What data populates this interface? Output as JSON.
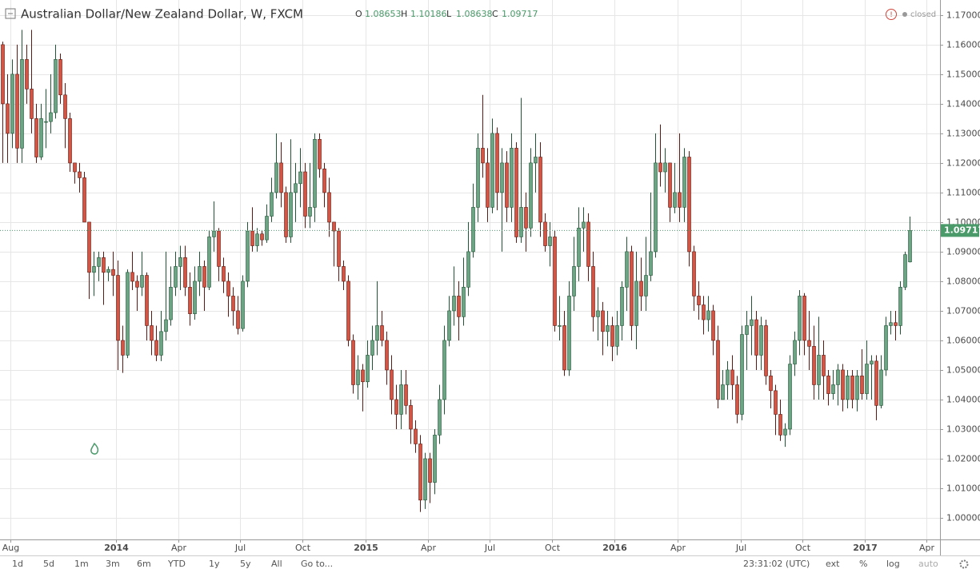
{
  "header": {
    "title": "Australian Dollar/New Zealand Dollar, W, FXCM",
    "ohlc_labels": [
      "O",
      "H",
      "L",
      "C"
    ],
    "status": "closed"
  },
  "toolbar": {
    "ranges": [
      "1d",
      "5d",
      "1m",
      "3m",
      "6m",
      "YTD",
      "1y",
      "5y",
      "All"
    ],
    "goto": "Go to...",
    "time": "23:31:02 (UTC)",
    "options": [
      "ext",
      "%",
      "log",
      "auto"
    ]
  },
  "chart_data": {
    "type": "candlestick",
    "up_color": "#6ba583",
    "down_color": "#d75442",
    "up_border": "#225437",
    "down_border": "#5b1a13",
    "grid": true,
    "xlim": [
      -0.5,
      195.3
    ],
    "xticks": [
      {
        "value": 1.7,
        "label": "Aug"
      },
      {
        "value": 23.7,
        "label": "2014"
      },
      {
        "value": 36.7,
        "label": "Apr"
      },
      {
        "value": 49.5,
        "label": "Jul"
      },
      {
        "value": 62.5,
        "label": "Oct"
      },
      {
        "value": 75.7,
        "label": "2015"
      },
      {
        "value": 88.7,
        "label": "Apr"
      },
      {
        "value": 101.5,
        "label": "Jul"
      },
      {
        "value": 114.5,
        "label": "Oct"
      },
      {
        "value": 127.5,
        "label": "2016"
      },
      {
        "value": 140.7,
        "label": "Apr"
      },
      {
        "value": 153.8,
        "label": "Jul"
      },
      {
        "value": 166.7,
        "label": "Oct"
      },
      {
        "value": 179.7,
        "label": "2017"
      },
      {
        "value": 192.5,
        "label": "Apr"
      }
    ],
    "ylim": [
      0.9927,
      1.1751
    ],
    "yticks": [
      {
        "value": 1.0,
        "label": "1.00000"
      },
      {
        "value": 1.01,
        "label": "1.01000"
      },
      {
        "value": 1.02,
        "label": "1.02000"
      },
      {
        "value": 1.03,
        "label": "1.03000"
      },
      {
        "value": 1.04,
        "label": "1.04000"
      },
      {
        "value": 1.05,
        "label": "1.05000"
      },
      {
        "value": 1.06,
        "label": "1.06000"
      },
      {
        "value": 1.07,
        "label": "1.07000"
      },
      {
        "value": 1.08,
        "label": "1.08000"
      },
      {
        "value": 1.09,
        "label": "1.09000"
      },
      {
        "value": 1.1,
        "label": "1.10000"
      },
      {
        "value": 1.11,
        "label": "1.11000"
      },
      {
        "value": 1.12,
        "label": "1.12000"
      },
      {
        "value": 1.13,
        "label": "1.13000"
      },
      {
        "value": 1.14,
        "label": "1.14000"
      },
      {
        "value": 1.15,
        "label": "1.15000"
      },
      {
        "value": 1.16,
        "label": "1.16000"
      },
      {
        "value": 1.17,
        "label": "1.17000"
      }
    ],
    "open": [
      1.16,
      1.14,
      1.13,
      1.15,
      1.125,
      1.155,
      1.145,
      1.135,
      1.122,
      1.134,
      1.134,
      1.137,
      1.155,
      1.143,
      1.135,
      1.12,
      1.117,
      1.115,
      1.1,
      1.083,
      1.085,
      1.088,
      1.083,
      1.084,
      1.082,
      1.06,
      1.055,
      1.083,
      1.08,
      1.078,
      1.082,
      1.065,
      1.06,
      1.055,
      1.063,
      1.067,
      1.078,
      1.085,
      1.088,
      1.078,
      1.069,
      1.08,
      1.085,
      1.078,
      1.095,
      1.097,
      1.085,
      1.08,
      1.075,
      1.07,
      1.064,
      1.08,
      1.097,
      1.092,
      1.096,
      1.094,
      1.102,
      1.11,
      1.12,
      1.11,
      1.095,
      1.11,
      1.113,
      1.117,
      1.102,
      1.105,
      1.128,
      1.118,
      1.11,
      1.1,
      1.097,
      1.085,
      1.08,
      1.06,
      1.045,
      1.05,
      1.046,
      1.055,
      1.06,
      1.065,
      1.06,
      1.05,
      1.04,
      1.035,
      1.045,
      1.038,
      1.03,
      1.025,
      1.006,
      1.02,
      1.012,
      1.028,
      1.04,
      1.06,
      1.07,
      1.075,
      1.068,
      1.078,
      1.09,
      1.105,
      1.125,
      1.12,
      1.105,
      1.13,
      1.11,
      1.12,
      1.105,
      1.125,
      1.095,
      1.105,
      1.098,
      1.12,
      1.122,
      1.1,
      1.092,
      1.095,
      1.065,
      1.065,
      1.05,
      1.075,
      1.085,
      1.098,
      1.1,
      1.085,
      1.068,
      1.07,
      1.063,
      1.065,
      1.058,
      1.065,
      1.078,
      1.09,
      1.065,
      1.08,
      1.075,
      1.082,
      1.09,
      1.12,
      1.117,
      1.12,
      1.105,
      1.11,
      1.105,
      1.122,
      1.09,
      1.075,
      1.072,
      1.067,
      1.07,
      1.06,
      1.04,
      1.045,
      1.05,
      1.045,
      1.035,
      1.062,
      1.065,
      1.067,
      1.055,
      1.065,
      1.048,
      1.043,
      1.035,
      1.028,
      1.03,
      1.052,
      1.06,
      1.075,
      1.06,
      1.058,
      1.045,
      1.055,
      1.048,
      1.042,
      1.045,
      1.05,
      1.04,
      1.048,
      1.04,
      1.048,
      1.042,
      1.052,
      1.053,
      1.038,
      1.05,
      1.065,
      1.066,
      1.065,
      1.078,
      1.08653
    ],
    "high": [
      1.161,
      1.15,
      1.155,
      1.16,
      1.165,
      1.16,
      1.165,
      1.14,
      1.14,
      1.145,
      1.15,
      1.16,
      1.157,
      1.147,
      1.137,
      1.12,
      1.12,
      1.117,
      1.1,
      1.09,
      1.09,
      1.09,
      1.085,
      1.09,
      1.087,
      1.065,
      1.084,
      1.09,
      1.082,
      1.09,
      1.083,
      1.07,
      1.065,
      1.07,
      1.09,
      1.085,
      1.09,
      1.092,
      1.092,
      1.083,
      1.085,
      1.09,
      1.087,
      1.097,
      1.107,
      1.098,
      1.088,
      1.083,
      1.078,
      1.075,
      1.082,
      1.1,
      1.105,
      1.098,
      1.097,
      1.106,
      1.115,
      1.13,
      1.127,
      1.112,
      1.128,
      1.12,
      1.125,
      1.12,
      1.12,
      1.13,
      1.13,
      1.12,
      1.115,
      1.1,
      1.098,
      1.087,
      1.082,
      1.062,
      1.055,
      1.052,
      1.06,
      1.065,
      1.08,
      1.07,
      1.063,
      1.055,
      1.045,
      1.05,
      1.05,
      1.04,
      1.033,
      1.028,
      1.022,
      1.022,
      1.03,
      1.045,
      1.065,
      1.075,
      1.085,
      1.08,
      1.088,
      1.1,
      1.113,
      1.13,
      1.143,
      1.125,
      1.135,
      1.132,
      1.125,
      1.124,
      1.13,
      1.127,
      1.142,
      1.11,
      1.125,
      1.13,
      1.127,
      1.103,
      1.1,
      1.097,
      1.075,
      1.07,
      1.08,
      1.095,
      1.105,
      1.105,
      1.103,
      1.09,
      1.078,
      1.073,
      1.07,
      1.068,
      1.07,
      1.08,
      1.095,
      1.092,
      1.09,
      1.088,
      1.095,
      1.11,
      1.13,
      1.133,
      1.125,
      1.12,
      1.12,
      1.13,
      1.125,
      1.124,
      1.092,
      1.08,
      1.075,
      1.075,
      1.072,
      1.065,
      1.05,
      1.053,
      1.055,
      1.048,
      1.065,
      1.07,
      1.075,
      1.07,
      1.068,
      1.067,
      1.05,
      1.045,
      1.04,
      1.032,
      1.055,
      1.063,
      1.077,
      1.076,
      1.07,
      1.065,
      1.068,
      1.06,
      1.05,
      1.05,
      1.052,
      1.052,
      1.05,
      1.05,
      1.05,
      1.057,
      1.06,
      1.055,
      1.055,
      1.055,
      1.068,
      1.07,
      1.07,
      1.08,
      1.09,
      1.10186
    ],
    "low": [
      1.12,
      1.12,
      1.125,
      1.12,
      1.12,
      1.14,
      1.13,
      1.12,
      1.121,
      1.125,
      1.13,
      1.135,
      1.14,
      1.125,
      1.117,
      1.113,
      1.11,
      1.1,
      1.074,
      1.075,
      1.08,
      1.072,
      1.08,
      1.075,
      1.05,
      1.049,
      1.054,
      1.077,
      1.07,
      1.075,
      1.06,
      1.055,
      1.053,
      1.053,
      1.06,
      1.065,
      1.075,
      1.077,
      1.075,
      1.065,
      1.067,
      1.075,
      1.07,
      1.077,
      1.09,
      1.08,
      1.076,
      1.068,
      1.065,
      1.062,
      1.063,
      1.078,
      1.09,
      1.09,
      1.092,
      1.093,
      1.1,
      1.108,
      1.105,
      1.093,
      1.093,
      1.1,
      1.105,
      1.098,
      1.098,
      1.1,
      1.115,
      1.105,
      1.095,
      1.085,
      1.08,
      1.077,
      1.058,
      1.042,
      1.04,
      1.036,
      1.044,
      1.05,
      1.055,
      1.058,
      1.045,
      1.035,
      1.03,
      1.03,
      1.035,
      1.025,
      1.022,
      1.002,
      1.003,
      1.005,
      1.008,
      1.025,
      1.035,
      1.058,
      1.065,
      1.06,
      1.065,
      1.075,
      1.088,
      1.1,
      1.115,
      1.1,
      1.103,
      1.104,
      1.09,
      1.1,
      1.1,
      1.093,
      1.093,
      1.09,
      1.095,
      1.11,
      1.095,
      1.09,
      1.085,
      1.063,
      1.06,
      1.048,
      1.048,
      1.07,
      1.08,
      1.09,
      1.08,
      1.063,
      1.06,
      1.055,
      1.058,
      1.053,
      1.055,
      1.06,
      1.07,
      1.06,
      1.057,
      1.07,
      1.07,
      1.08,
      1.088,
      1.112,
      1.11,
      1.1,
      1.103,
      1.1,
      1.1,
      1.085,
      1.07,
      1.067,
      1.062,
      1.063,
      1.055,
      1.037,
      1.04,
      1.04,
      1.04,
      1.032,
      1.033,
      1.05,
      1.055,
      1.05,
      1.05,
      1.045,
      1.037,
      1.028,
      1.026,
      1.024,
      1.028,
      1.048,
      1.055,
      1.055,
      1.05,
      1.04,
      1.04,
      1.04,
      1.038,
      1.04,
      1.038,
      1.036,
      1.037,
      1.037,
      1.036,
      1.04,
      1.04,
      1.04,
      1.033,
      1.037,
      1.048,
      1.062,
      1.06,
      1.062,
      1.077,
      1.08638
    ],
    "close": [
      1.14,
      1.13,
      1.15,
      1.125,
      1.155,
      1.145,
      1.135,
      1.122,
      1.135,
      1.134,
      1.137,
      1.155,
      1.143,
      1.135,
      1.12,
      1.117,
      1.115,
      1.1,
      1.083,
      1.085,
      1.088,
      1.083,
      1.084,
      1.082,
      1.06,
      1.055,
      1.083,
      1.08,
      1.078,
      1.082,
      1.065,
      1.06,
      1.055,
      1.063,
      1.067,
      1.078,
      1.085,
      1.088,
      1.078,
      1.069,
      1.08,
      1.085,
      1.078,
      1.095,
      1.097,
      1.085,
      1.08,
      1.075,
      1.07,
      1.064,
      1.08,
      1.097,
      1.092,
      1.096,
      1.094,
      1.102,
      1.11,
      1.12,
      1.11,
      1.095,
      1.11,
      1.113,
      1.117,
      1.102,
      1.105,
      1.128,
      1.118,
      1.11,
      1.1,
      1.097,
      1.085,
      1.08,
      1.06,
      1.045,
      1.05,
      1.046,
      1.055,
      1.06,
      1.065,
      1.06,
      1.05,
      1.04,
      1.035,
      1.045,
      1.038,
      1.03,
      1.025,
      1.006,
      1.02,
      1.012,
      1.028,
      1.04,
      1.06,
      1.07,
      1.075,
      1.068,
      1.078,
      1.09,
      1.105,
      1.125,
      1.12,
      1.105,
      1.13,
      1.11,
      1.12,
      1.105,
      1.125,
      1.095,
      1.105,
      1.098,
      1.12,
      1.122,
      1.1,
      1.092,
      1.095,
      1.065,
      1.065,
      1.05,
      1.075,
      1.085,
      1.098,
      1.1,
      1.085,
      1.068,
      1.07,
      1.063,
      1.065,
      1.058,
      1.065,
      1.078,
      1.09,
      1.065,
      1.08,
      1.075,
      1.082,
      1.09,
      1.12,
      1.117,
      1.12,
      1.105,
      1.11,
      1.105,
      1.122,
      1.09,
      1.075,
      1.072,
      1.067,
      1.07,
      1.06,
      1.04,
      1.045,
      1.05,
      1.045,
      1.035,
      1.062,
      1.065,
      1.067,
      1.055,
      1.065,
      1.048,
      1.043,
      1.035,
      1.028,
      1.03,
      1.052,
      1.06,
      1.075,
      1.06,
      1.058,
      1.045,
      1.055,
      1.048,
      1.042,
      1.045,
      1.05,
      1.04,
      1.048,
      1.04,
      1.048,
      1.042,
      1.052,
      1.053,
      1.038,
      1.05,
      1.065,
      1.066,
      1.065,
      1.078,
      1.089,
      1.09717
    ]
  }
}
